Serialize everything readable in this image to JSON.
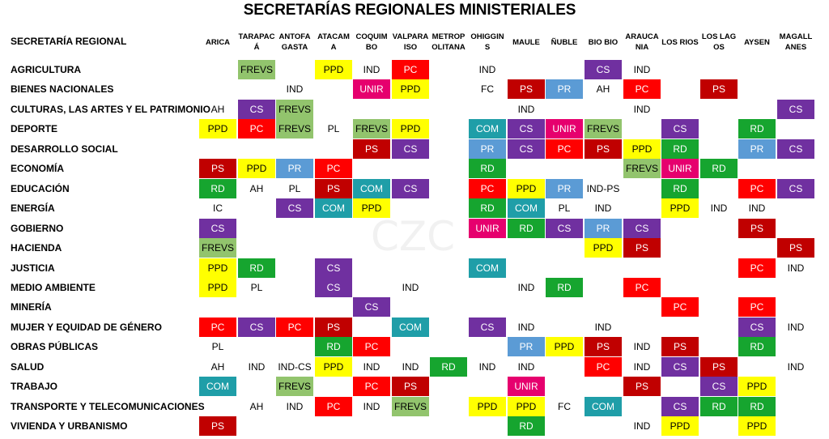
{
  "title": "SECRETARÍAS REGIONALES MINISTERIALES",
  "watermark": "CZC",
  "header_label": "SECRETARÍA REGIONAL",
  "regions": [
    "ARICA",
    "TARAPACÁ",
    "ANTOFA GASTA",
    "ATACAM A",
    "COQUIM BO",
    "VALPARA ISO",
    "METROP OLITANA",
    "OHIGGIN S",
    "MAULE",
    "ÑUBLE",
    "BIO BIO",
    "ARAUCA NIA",
    "LOS RIOS",
    "LOS LAGOS",
    "AYSEN",
    "MAGALL ANES"
  ],
  "party_colors": {
    "FREVS": "#92c46d",
    "PPD": "#ffff00",
    "PC": "#ff0000",
    "PS": "#c00000",
    "CS": "#7030a0",
    "UNIR": "#e6006e",
    "PR": "#5b9bd5",
    "COM": "#1f9ea8",
    "RD": "#16a52f"
  },
  "ministries": [
    {
      "name": "AGRICULTURA",
      "cells": [
        "",
        "FREVS",
        "",
        "PPD",
        "IND",
        "PC",
        "",
        "IND",
        "",
        "",
        "CS",
        "IND",
        "",
        "",
        "",
        ""
      ]
    },
    {
      "name": "BIENES NACIONALES",
      "cells": [
        "",
        "",
        "IND",
        "",
        "UNIR",
        "PPD",
        "",
        "FC",
        "PS",
        "PR",
        "AH",
        "PC",
        "",
        "PS",
        "",
        ""
      ]
    },
    {
      "name": "CULTURAS, LAS ARTES Y EL PATRIMONIO",
      "cells": [
        "AH",
        "CS",
        "FREVS",
        "",
        "",
        "",
        "",
        "",
        "IND",
        "",
        "",
        "IND",
        "",
        "",
        "",
        "CS"
      ]
    },
    {
      "name": "DEPORTE",
      "cells": [
        "PPD",
        "PC",
        "FREVS",
        "PL",
        "FREVS",
        "PPD",
        "",
        "COM",
        "CS",
        "UNIR",
        "FREVS",
        "",
        "CS",
        "",
        "RD",
        ""
      ]
    },
    {
      "name": "DESARROLLO SOCIAL",
      "cells": [
        "",
        "",
        "",
        "",
        "PS",
        "CS",
        "",
        "PR",
        "CS",
        "PC",
        "PS",
        "PPD",
        "RD",
        "",
        "PR",
        "CS"
      ]
    },
    {
      "name": "ECONOMÍA",
      "cells": [
        "PS",
        "PPD",
        "PR",
        "PC",
        "",
        "",
        "",
        "RD",
        "",
        "",
        "",
        "FREVS",
        "UNIR",
        "RD",
        "",
        ""
      ]
    },
    {
      "name": "EDUCACIÓN",
      "cells": [
        "RD",
        "AH",
        "PL",
        "PS",
        "COM",
        "CS",
        "",
        "PC",
        "PPD",
        "PR",
        "IND-PS",
        "",
        "RD",
        "",
        "PC",
        "CS"
      ]
    },
    {
      "name": "ENERGÍA",
      "cells": [
        "IC",
        "",
        "CS",
        "COM",
        "PPD",
        "",
        "",
        "RD",
        "COM",
        "PL",
        "IND",
        "",
        "PPD",
        "IND",
        "IND",
        ""
      ]
    },
    {
      "name": "GOBIERNO",
      "cells": [
        "CS",
        "",
        "",
        "",
        "",
        "",
        "",
        "UNIR",
        "RD",
        "CS",
        "PR",
        "CS",
        "",
        "",
        "PS",
        ""
      ]
    },
    {
      "name": "HACIENDA",
      "cells": [
        "FREVS",
        "",
        "",
        "",
        "",
        "",
        "",
        "",
        "",
        "",
        "PPD",
        "PS",
        "",
        "",
        "",
        "PS"
      ]
    },
    {
      "name": "JUSTICIA",
      "cells": [
        "PPD",
        "RD",
        "",
        "CS",
        "",
        "",
        "",
        "COM",
        "",
        "",
        "",
        "",
        "",
        "",
        "PC",
        "IND"
      ]
    },
    {
      "name": "MEDIO AMBIENTE",
      "cells": [
        "PPD",
        "PL",
        "",
        "CS",
        "",
        "IND",
        "",
        "",
        "IND",
        "RD",
        "",
        "PC",
        "",
        "",
        "",
        ""
      ]
    },
    {
      "name": "MINERÍA",
      "cells": [
        "",
        "",
        "",
        "",
        "CS",
        "",
        "",
        "",
        "",
        "",
        "",
        "",
        "PC",
        "",
        "PC",
        ""
      ]
    },
    {
      "name": "MUJER Y EQUIDAD DE GÉNERO",
      "cells": [
        "PC",
        "CS",
        "PC",
        "PS",
        "",
        "COM",
        "",
        "CS",
        "IND",
        "",
        "IND",
        "",
        "",
        "",
        "CS",
        "IND"
      ]
    },
    {
      "name": "OBRAS PÚBLICAS",
      "cells": [
        "PL",
        "",
        "",
        "RD",
        "PC",
        "",
        "",
        "",
        "PR",
        "PPD",
        "PS",
        "IND",
        "PS",
        "",
        "RD",
        ""
      ]
    },
    {
      "name": "SALUD",
      "cells": [
        "AH",
        "IND",
        "IND-CS",
        "PPD",
        "IND",
        "IND",
        "RD",
        "IND",
        "IND",
        "",
        "PC",
        "IND",
        "CS",
        "PS",
        "",
        "IND"
      ]
    },
    {
      "name": "TRABAJO",
      "cells": [
        "COM",
        "",
        "FREVS",
        "",
        "PC",
        "PS",
        "",
        "",
        "UNIR",
        "",
        "",
        "PS",
        "",
        "CS",
        "PPD",
        ""
      ]
    },
    {
      "name": "TRANSPORTE Y TELECOMUNICACIONES",
      "cells": [
        "",
        "AH",
        "IND",
        "PC",
        "IND",
        "FREVS",
        "",
        "PPD",
        "PPD",
        "FC",
        "COM",
        "",
        "CS",
        "RD",
        "RD",
        ""
      ]
    },
    {
      "name": "VIVIENDA Y URBANISMO",
      "cells": [
        "PS",
        "",
        "",
        "",
        "",
        "",
        "",
        "",
        "RD",
        "",
        "",
        "IND",
        "PPD",
        "",
        "PPD",
        ""
      ]
    }
  ]
}
